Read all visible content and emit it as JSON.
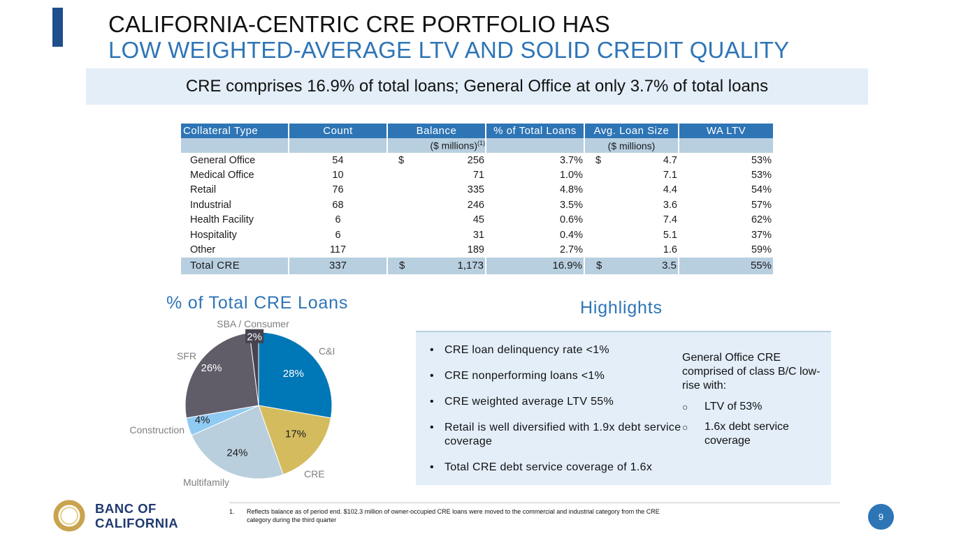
{
  "header": {
    "title_line1": "CALIFORNIA-CENTRIC CRE PORTFOLIO HAS",
    "title_line2": "LOW WEIGHTED-AVERAGE LTV AND SOLID CREDIT QUALITY",
    "banner": "CRE comprises 16.9% of total loans; General Office at only 3.7% of total loans"
  },
  "table": {
    "columns": [
      "Collateral Type",
      "Count",
      "Balance",
      "% of Total Loans",
      "Avg. Loan Size",
      "WA LTV"
    ],
    "balance_unit": "($ millions)",
    "balance_footnote": "(1)",
    "avg_unit": "($ millions)",
    "currency_symbol": "$",
    "rows": [
      {
        "type": "General Office",
        "count": "54",
        "balance": "256",
        "pct": "3.7%",
        "avg": "4.7",
        "ltv": "53%"
      },
      {
        "type": "Medical Office",
        "count": "10",
        "balance": "71",
        "pct": "1.0%",
        "avg": "7.1",
        "ltv": "53%"
      },
      {
        "type": "Retail",
        "count": "76",
        "balance": "335",
        "pct": "4.8%",
        "avg": "4.4",
        "ltv": "54%"
      },
      {
        "type": "Industrial",
        "count": "68",
        "balance": "246",
        "pct": "3.5%",
        "avg": "3.6",
        "ltv": "57%"
      },
      {
        "type": "Health Facility",
        "count": "6",
        "balance": "45",
        "pct": "0.6%",
        "avg": "7.4",
        "ltv": "62%"
      },
      {
        "type": "Hospitality",
        "count": "6",
        "balance": "31",
        "pct": "0.4%",
        "avg": "5.1",
        "ltv": "37%"
      },
      {
        "type": "Other",
        "count": "117",
        "balance": "189",
        "pct": "2.7%",
        "avg": "1.6",
        "ltv": "59%"
      }
    ],
    "total": {
      "type": "Total CRE",
      "count": "337",
      "balance": "1,173",
      "pct": "16.9%",
      "avg": "3.5",
      "ltv": "55%"
    }
  },
  "chart_data": {
    "type": "pie",
    "title": "% of Total CRE Loans",
    "slices": [
      {
        "label": "C&I",
        "value": 28,
        "display": "28%",
        "color": "#0077b6"
      },
      {
        "label": "CRE",
        "value": 17,
        "display": "17%",
        "color": "#d4bc5e"
      },
      {
        "label": "Multifamily",
        "value": 24,
        "display": "24%",
        "color": "#b9cfdd"
      },
      {
        "label": "Construction",
        "value": 4,
        "display": "4%",
        "color": "#8fcaf2"
      },
      {
        "label": "SFR",
        "value": 26,
        "display": "26%",
        "color": "#605c68"
      },
      {
        "label": "SBA / Consumer",
        "value": 2,
        "display": "2%",
        "color": "#46434f"
      }
    ]
  },
  "highlights": {
    "title": "Highlights",
    "bullets": [
      "CRE loan delinquency rate <1%",
      "CRE nonperforming loans <1%",
      "CRE weighted average LTV 55%",
      "Retail is well diversified with 1.9x debt service coverage",
      "Total CRE debt service coverage of 1.6x"
    ],
    "side_intro": "General Office CRE comprised of class B/C low-rise with:",
    "side_items": [
      "LTV of 53%",
      "1.6x debt service coverage"
    ]
  },
  "footer": {
    "logo_line1": "BANC OF",
    "logo_line2": "CALIFORNIA",
    "footnote_num": "1.",
    "footnote": "Reflects balance as of period end. $102.3 million of owner-occupied CRE loans were moved to the commercial and industrial category from the CRE category during the third quarter",
    "page_number": "9",
    "accent_color": "#2e75b6",
    "brand_navy": "#1f3a70",
    "gold": "#c9a34e"
  }
}
